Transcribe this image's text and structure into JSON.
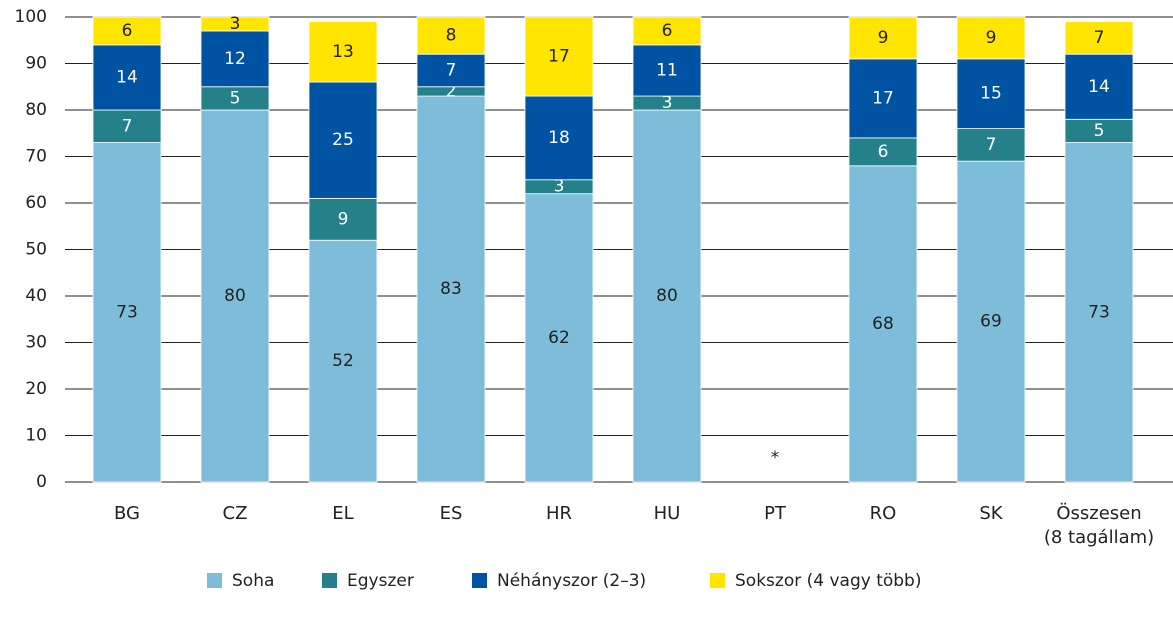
{
  "chart_data": {
    "type": "stacked_bar",
    "categories": [
      "BG",
      "CZ",
      "EL",
      "ES",
      "HR",
      "HU",
      "PT",
      "RO",
      "SK",
      "Összesen\n(8 tagállam)"
    ],
    "series": [
      {
        "name": "Soha",
        "color": "#7dbdd9",
        "values": [
          73,
          80,
          52,
          83,
          62,
          80,
          null,
          68,
          69,
          73
        ]
      },
      {
        "name": "Egyszer",
        "color": "#24818a",
        "values": [
          7,
          5,
          9,
          2,
          3,
          3,
          null,
          6,
          7,
          5
        ]
      },
      {
        "name": "Néhányszor (2–3)",
        "color": "#0053a3",
        "values": [
          14,
          12,
          25,
          7,
          18,
          11,
          null,
          17,
          15,
          14
        ]
      },
      {
        "name": "Sokszor (4 vagy több)",
        "color": "#ffe500",
        "values": [
          6,
          3,
          13,
          8,
          17,
          6,
          null,
          9,
          9,
          7
        ]
      }
    ],
    "annotations": [
      {
        "text": "*",
        "x": "PT"
      }
    ],
    "ylim": [
      0,
      100
    ],
    "yticks": [
      0,
      10,
      20,
      30,
      40,
      50,
      60,
      70,
      80,
      90,
      100
    ],
    "grid": true,
    "legend": "bottom"
  }
}
